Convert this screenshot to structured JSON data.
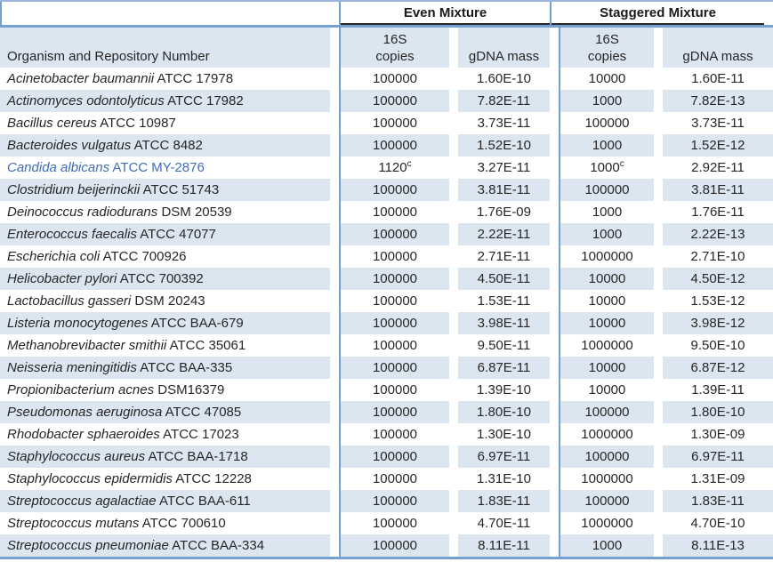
{
  "table": {
    "groups": {
      "even": "Even Mixture",
      "staggered": "Staggered Mixture"
    },
    "headers": {
      "organism": "Organism and Repository Number",
      "copies_line1": "16S",
      "copies_line2": "copies",
      "mass": "gDNA mass"
    },
    "colors": {
      "stripe": "#dce6f1",
      "border_blue": "#74a0d2",
      "header_underline": "#262626",
      "highlight_text": "#3f6eb5",
      "text": "#262626"
    },
    "footnote_marker": "c",
    "rows": [
      {
        "sp": "Acinetobacter baumannii",
        "id": "ATCC 17978",
        "ec": "100000",
        "ecs": "",
        "em": "1.60E-10",
        "sc": "10000",
        "scs": "",
        "sm": "1.60E-11",
        "highlight": false
      },
      {
        "sp": "Actinomyces odontolyticus",
        "id": "ATCC 17982",
        "ec": "100000",
        "ecs": "",
        "em": "7.82E-11",
        "sc": "1000",
        "scs": "",
        "sm": "7.82E-13",
        "highlight": false
      },
      {
        "sp": "Bacillus cereus",
        "id": "ATCC 10987",
        "ec": "100000",
        "ecs": "",
        "em": "3.73E-11",
        "sc": "100000",
        "scs": "",
        "sm": "3.73E-11",
        "highlight": false
      },
      {
        "sp": "Bacteroides vulgatus",
        "id": "ATCC 8482",
        "ec": "100000",
        "ecs": "",
        "em": "1.52E-10",
        "sc": "1000",
        "scs": "",
        "sm": "1.52E-12",
        "highlight": false
      },
      {
        "sp": "Candida albicans",
        "id": "ATCC MY-2876",
        "ec": "1120",
        "ecs": "c",
        "em": "3.27E-11",
        "sc": "1000",
        "scs": "c",
        "sm": "2.92E-11",
        "highlight": true
      },
      {
        "sp": "Clostridium beijerinckii",
        "id": "ATCC 51743",
        "ec": "100000",
        "ecs": "",
        "em": "3.81E-11",
        "sc": "100000",
        "scs": "",
        "sm": "3.81E-11",
        "highlight": false
      },
      {
        "sp": "Deinococcus radiodurans",
        "id": "DSM 20539",
        "ec": "100000",
        "ecs": "",
        "em": "1.76E-09",
        "sc": "1000",
        "scs": "",
        "sm": "1.76E-11",
        "highlight": false
      },
      {
        "sp": "Enterococcus faecalis",
        "id": "ATCC 47077",
        "ec": "100000",
        "ecs": "",
        "em": "2.22E-11",
        "sc": "1000",
        "scs": "",
        "sm": "2.22E-13",
        "highlight": false
      },
      {
        "sp": "Escherichia coli",
        "id": "ATCC 700926",
        "ec": "100000",
        "ecs": "",
        "em": "2.71E-11",
        "sc": "1000000",
        "scs": "",
        "sm": "2.71E-10",
        "highlight": false
      },
      {
        "sp": "Helicobacter pylori",
        "id": "ATCC 700392",
        "ec": "100000",
        "ecs": "",
        "em": "4.50E-11",
        "sc": "10000",
        "scs": "",
        "sm": "4.50E-12",
        "highlight": false
      },
      {
        "sp": "Lactobacillus gasseri",
        "id": "DSM 20243",
        "ec": "100000",
        "ecs": "",
        "em": "1.53E-11",
        "sc": "10000",
        "scs": "",
        "sm": "1.53E-12",
        "highlight": false
      },
      {
        "sp": "Listeria monocytogenes",
        "id": "ATCC BAA-679",
        "ec": "100000",
        "ecs": "",
        "em": "3.98E-11",
        "sc": "10000",
        "scs": "",
        "sm": "3.98E-12",
        "highlight": false
      },
      {
        "sp": "Methanobrevibacter smithii",
        "id": "ATCC 35061",
        "ec": "100000",
        "ecs": "",
        "em": "9.50E-11",
        "sc": "1000000",
        "scs": "",
        "sm": "9.50E-10",
        "highlight": false
      },
      {
        "sp": "Neisseria meningitidis",
        "id": "ATCC BAA-335",
        "ec": "100000",
        "ecs": "",
        "em": "6.87E-11",
        "sc": "10000",
        "scs": "",
        "sm": "6.87E-12",
        "highlight": false
      },
      {
        "sp": "Propionibacterium acnes",
        "id": "DSM16379",
        "ec": "100000",
        "ecs": "",
        "em": "1.39E-10",
        "sc": "10000",
        "scs": "",
        "sm": "1.39E-11",
        "highlight": false
      },
      {
        "sp": "Pseudomonas aeruginosa",
        "id": "ATCC 47085",
        "ec": "100000",
        "ecs": "",
        "em": "1.80E-10",
        "sc": "100000",
        "scs": "",
        "sm": "1.80E-10",
        "highlight": false
      },
      {
        "sp": "Rhodobacter sphaeroides",
        "id": "ATCC 17023",
        "ec": "100000",
        "ecs": "",
        "em": "1.30E-10",
        "sc": "1000000",
        "scs": "",
        "sm": "1.30E-09",
        "highlight": false
      },
      {
        "sp": "Staphylococcus aureus",
        "id": "ATCC BAA-1718",
        "ec": "100000",
        "ecs": "",
        "em": "6.97E-11",
        "sc": "100000",
        "scs": "",
        "sm": "6.97E-11",
        "highlight": false
      },
      {
        "sp": "Staphylococcus epidermidis",
        "id": "ATCC 12228",
        "ec": "100000",
        "ecs": "",
        "em": "1.31E-10",
        "sc": "1000000",
        "scs": "",
        "sm": "1.31E-09",
        "highlight": false
      },
      {
        "sp": "Streptococcus agalactiae",
        "id": "ATCC BAA-611",
        "ec": "100000",
        "ecs": "",
        "em": "1.83E-11",
        "sc": "100000",
        "scs": "",
        "sm": "1.83E-11",
        "highlight": false
      },
      {
        "sp": "Streptococcus mutans",
        "id": "ATCC 700610",
        "ec": "100000",
        "ecs": "",
        "em": "4.70E-11",
        "sc": "1000000",
        "scs": "",
        "sm": "4.70E-10",
        "highlight": false
      },
      {
        "sp": "Streptococcus pneumoniae",
        "id": "ATCC BAA-334",
        "ec": "100000",
        "ecs": "",
        "em": "8.11E-11",
        "sc": "1000",
        "scs": "",
        "sm": "8.11E-13",
        "highlight": false
      }
    ]
  }
}
